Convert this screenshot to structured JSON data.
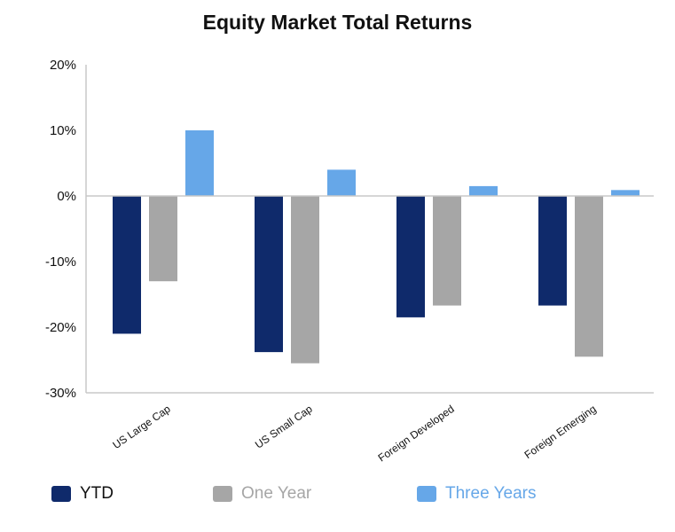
{
  "chart_data": {
    "type": "bar",
    "title": "Equity Market Total Returns",
    "xlabel": "",
    "ylabel": "",
    "categories": [
      "US Large Cap",
      "US Small Cap",
      "Foreign Developed",
      "Foreign Emerging"
    ],
    "series": [
      {
        "name": "YTD",
        "color": "#0f2a6b",
        "values": [
          -21.0,
          -23.8,
          -18.5,
          -16.7
        ]
      },
      {
        "name": "One Year",
        "color": "#a6a6a6",
        "values": [
          -13.0,
          -25.5,
          -16.7,
          -24.5
        ]
      },
      {
        "name": "Three Years",
        "color": "#66a7e8",
        "values": [
          10.0,
          4.0,
          1.5,
          0.9
        ]
      }
    ],
    "ylim": [
      -30,
      20
    ],
    "yticks": [
      20,
      10,
      0,
      -10,
      -20,
      -30
    ],
    "ytick_labels": [
      "20%",
      "10%",
      "0%",
      "-10%",
      "-20%",
      "-30%"
    ],
    "grid": false,
    "legend_position": "bottom-left"
  }
}
